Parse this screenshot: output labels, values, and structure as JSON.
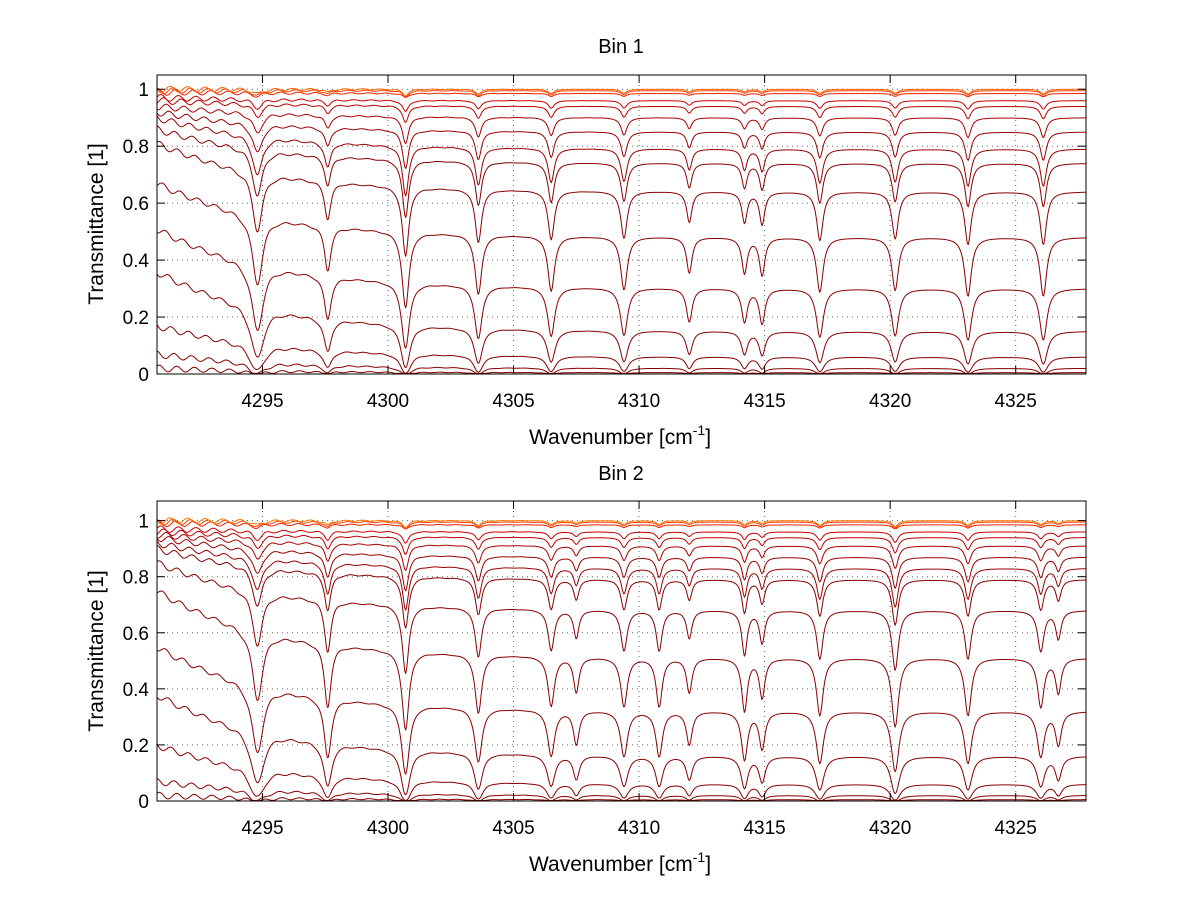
{
  "chart_data": [
    {
      "type": "line",
      "title": "Bin 1",
      "xlabel": "Wavenumber [cm",
      "xlabel_sup": "-1",
      "xlabel_tail": "]",
      "ylabel": "Transmittance [1]",
      "xlim": [
        4290.8,
        4327.8
      ],
      "ylim": [
        0,
        1.05
      ],
      "xticks": [
        4295,
        4300,
        4305,
        4310,
        4315,
        4320,
        4325
      ],
      "yticks": [
        0,
        0.2,
        0.4,
        0.6,
        0.8,
        1
      ],
      "grid": true,
      "absorption_lines": [
        {
          "x": 4294.8,
          "depth": 0.55,
          "width": 0.22
        },
        {
          "x": 4297.6,
          "depth": 0.35,
          "width": 0.14
        },
        {
          "x": 4300.7,
          "depth": 0.75,
          "width": 0.14
        },
        {
          "x": 4303.6,
          "depth": 0.55,
          "width": 0.14
        },
        {
          "x": 4306.5,
          "depth": 0.5,
          "width": 0.14
        },
        {
          "x": 4309.4,
          "depth": 0.48,
          "width": 0.14
        },
        {
          "x": 4312.0,
          "depth": 0.3,
          "width": 0.12
        },
        {
          "x": 4314.2,
          "depth": 0.3,
          "width": 0.12
        },
        {
          "x": 4314.9,
          "depth": 0.32,
          "width": 0.12
        },
        {
          "x": 4317.2,
          "depth": 0.5,
          "width": 0.14
        },
        {
          "x": 4320.2,
          "depth": 0.48,
          "width": 0.14
        },
        {
          "x": 4323.1,
          "depth": 0.55,
          "width": 0.14
        },
        {
          "x": 4326.1,
          "depth": 0.55,
          "width": 0.14
        }
      ],
      "series": [
        {
          "color": "#ff6600",
          "right": 1.0,
          "left": 1.0
        },
        {
          "color": "#ff4000",
          "right": 0.995,
          "left": 0.995
        },
        {
          "color": "#ee2200",
          "right": 0.985,
          "left": 0.99
        },
        {
          "color": "#cc0000",
          "right": 0.96,
          "left": 0.97
        },
        {
          "color": "#bb0000",
          "right": 0.94,
          "left": 0.96
        },
        {
          "color": "#aa0000",
          "right": 0.9,
          "left": 0.94
        },
        {
          "color": "#990000",
          "right": 0.85,
          "left": 0.92
        },
        {
          "color": "#990000",
          "right": 0.79,
          "left": 0.9
        },
        {
          "color": "#880000",
          "right": 0.74,
          "left": 0.86
        },
        {
          "color": "#880000",
          "right": 0.64,
          "left": 0.81
        },
        {
          "color": "#880000",
          "right": 0.48,
          "left": 0.67
        },
        {
          "color": "#880000",
          "right": 0.3,
          "left": 0.51
        },
        {
          "color": "#880000",
          "right": 0.15,
          "left": 0.36
        },
        {
          "color": "#880000",
          "right": 0.06,
          "left": 0.17
        },
        {
          "color": "#880000",
          "right": 0.02,
          "left": 0.07
        },
        {
          "color": "#880000",
          "right": 0.005,
          "left": 0.02
        }
      ]
    },
    {
      "type": "line",
      "title": "Bin 2",
      "xlabel": "Wavenumber [cm",
      "xlabel_sup": "-1",
      "xlabel_tail": "]",
      "ylabel": "Transmittance [1]",
      "xlim": [
        4290.8,
        4327.8
      ],
      "ylim": [
        0,
        1.07
      ],
      "xticks": [
        4295,
        4300,
        4305,
        4310,
        4315,
        4320,
        4325
      ],
      "yticks": [
        0,
        0.2,
        0.4,
        0.6,
        0.8,
        1
      ],
      "grid": true,
      "absorption_lines": [
        {
          "x": 4294.8,
          "depth": 0.55,
          "width": 0.22
        },
        {
          "x": 4297.6,
          "depth": 0.55,
          "width": 0.14
        },
        {
          "x": 4300.7,
          "depth": 0.8,
          "width": 0.14
        },
        {
          "x": 4303.6,
          "depth": 0.55,
          "width": 0.14
        },
        {
          "x": 4306.5,
          "depth": 0.45,
          "width": 0.14
        },
        {
          "x": 4307.5,
          "depth": 0.3,
          "width": 0.12
        },
        {
          "x": 4309.4,
          "depth": 0.45,
          "width": 0.14
        },
        {
          "x": 4310.8,
          "depth": 0.45,
          "width": 0.13
        },
        {
          "x": 4312.0,
          "depth": 0.3,
          "width": 0.12
        },
        {
          "x": 4314.2,
          "depth": 0.5,
          "width": 0.12
        },
        {
          "x": 4314.9,
          "depth": 0.35,
          "width": 0.12
        },
        {
          "x": 4317.2,
          "depth": 0.55,
          "width": 0.14
        },
        {
          "x": 4320.2,
          "depth": 0.7,
          "width": 0.14
        },
        {
          "x": 4323.1,
          "depth": 0.55,
          "width": 0.14
        },
        {
          "x": 4326.0,
          "depth": 0.45,
          "width": 0.14
        },
        {
          "x": 4326.7,
          "depth": 0.3,
          "width": 0.12
        }
      ],
      "series": [
        {
          "color": "#ff7700",
          "right": 1.0,
          "left": 1.0
        },
        {
          "color": "#ff4400",
          "right": 0.995,
          "left": 0.995
        },
        {
          "color": "#ee2200",
          "right": 0.985,
          "left": 0.99
        },
        {
          "color": "#cc0000",
          "right": 0.96,
          "left": 0.97
        },
        {
          "color": "#bb0000",
          "right": 0.94,
          "left": 0.96
        },
        {
          "color": "#aa0000",
          "right": 0.91,
          "left": 0.95
        },
        {
          "color": "#990000",
          "right": 0.87,
          "left": 0.94
        },
        {
          "color": "#990000",
          "right": 0.83,
          "left": 0.92
        },
        {
          "color": "#880000",
          "right": 0.79,
          "left": 0.9
        },
        {
          "color": "#880000",
          "right": 0.68,
          "left": 0.85
        },
        {
          "color": "#880000",
          "right": 0.51,
          "left": 0.75
        },
        {
          "color": "#880000",
          "right": 0.32,
          "left": 0.55
        },
        {
          "color": "#880000",
          "right": 0.16,
          "left": 0.38
        },
        {
          "color": "#880000",
          "right": 0.06,
          "left": 0.2
        },
        {
          "color": "#880000",
          "right": 0.02,
          "left": 0.07
        },
        {
          "color": "#880000",
          "right": 0.005,
          "left": 0.02
        }
      ]
    }
  ]
}
